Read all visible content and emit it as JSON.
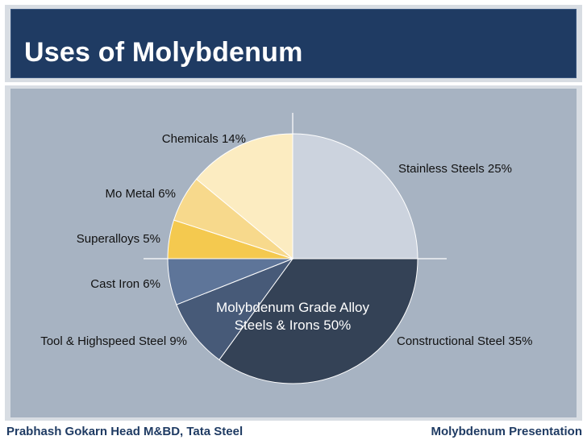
{
  "slide": {
    "title": "Uses of Molybdenum",
    "footer_left": "Prabhash Gokarn Head M&BD, Tata Steel",
    "footer_right": "Molybdenum Presentation"
  },
  "chart_data": {
    "type": "pie",
    "slices": [
      {
        "label": "Stainless Steels 25%",
        "value": 25,
        "color": "#ccd3de"
      },
      {
        "label": "Constructional Steel 35%",
        "value": 35,
        "color": "#344256"
      },
      {
        "label": "Tool & Highspeed Steel 9%",
        "value": 9,
        "color": "#475a78"
      },
      {
        "label": "Cast Iron 6%",
        "value": 6,
        "color": "#5e7599"
      },
      {
        "label": "Superalloys 5%",
        "value": 5,
        "color": "#f4c94f"
      },
      {
        "label": "Mo Metal 6%",
        "value": 6,
        "color": "#f7d98c"
      },
      {
        "label": "Chemicals 14%",
        "value": 14,
        "color": "#fcecc1"
      }
    ],
    "center_label": [
      "Molybdenum Grade Alloy",
      "Steels & Irons 50%"
    ],
    "colors": {
      "title_bg": "#1f3b63",
      "panel_bg": "#a7b3c2",
      "axis_lines": "#ffffff"
    }
  }
}
